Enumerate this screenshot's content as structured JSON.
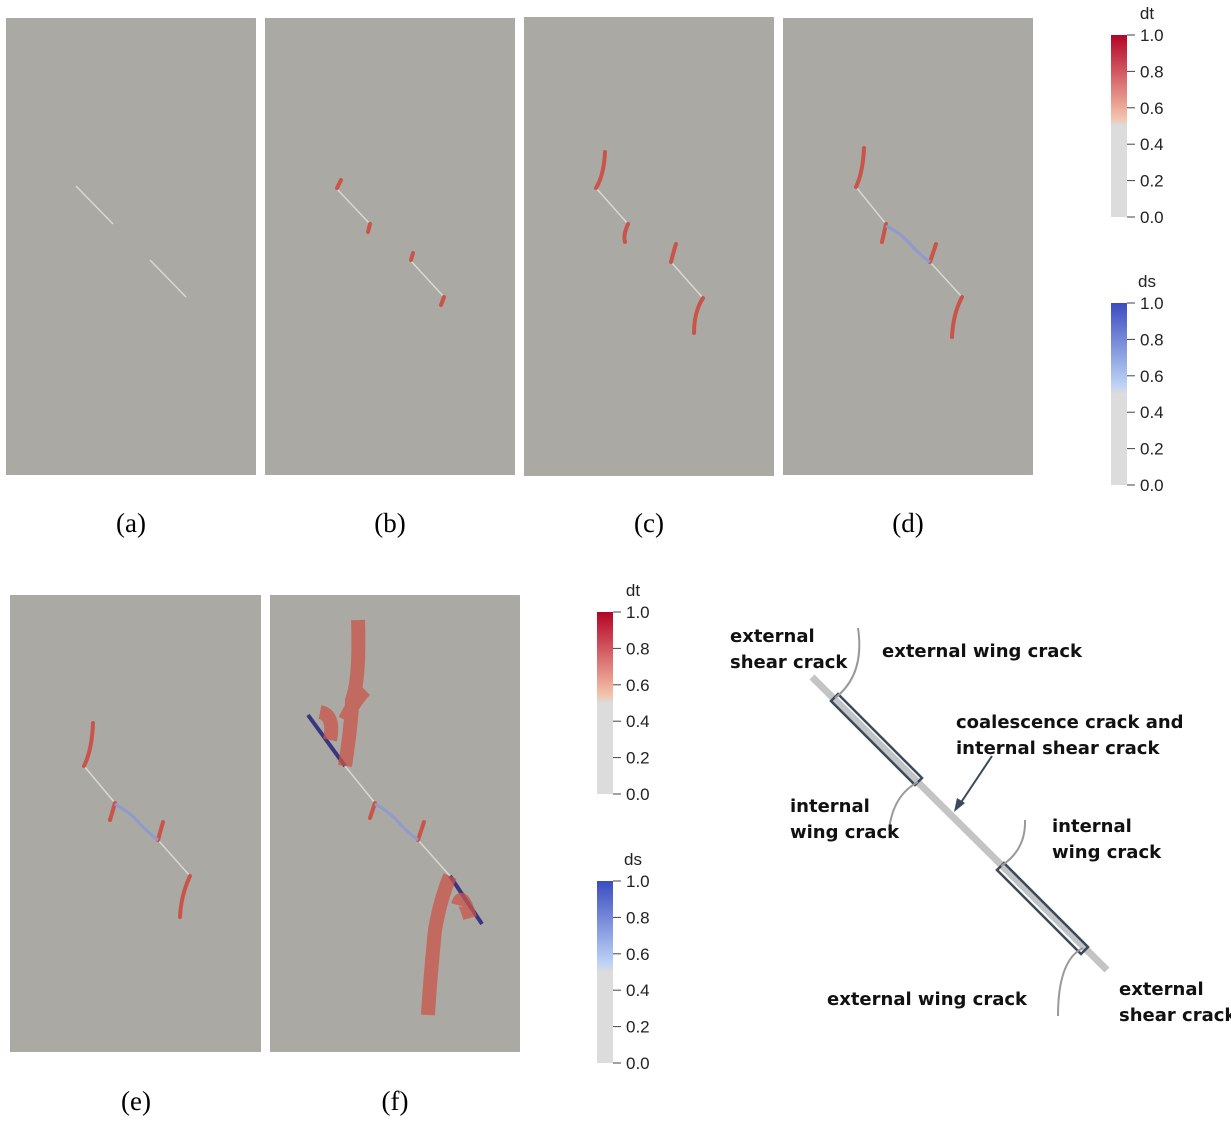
{
  "panel_labels": [
    "(a)",
    "(b)",
    "(c)",
    "(d)",
    "(e)",
    "(f)"
  ],
  "colorbars": [
    {
      "title": "dt",
      "ticks": [
        {
          "value": 1,
          "label": "1.0"
        },
        {
          "value": 0.8,
          "label": "0.8"
        },
        {
          "value": 0.6,
          "label": "0.6"
        },
        {
          "value": 0.4,
          "label": "0.4"
        },
        {
          "value": 0.2,
          "label": "0.2"
        },
        {
          "value": 0,
          "label": "0.0"
        }
      ]
    },
    {
      "title": "ds",
      "ticks": [
        {
          "value": 1,
          "label": "1.0"
        },
        {
          "value": 0.8,
          "label": "0.8"
        },
        {
          "value": 0.6,
          "label": "0.6"
        },
        {
          "value": 0.4,
          "label": "0.4"
        },
        {
          "value": 0.2,
          "label": "0.2"
        },
        {
          "value": 0,
          "label": "0.0"
        }
      ]
    },
    {
      "title": "dt",
      "ticks": [
        {
          "value": 1,
          "label": "1.0"
        },
        {
          "value": 0.8,
          "label": "0.8"
        },
        {
          "value": 0.6,
          "label": "0.6"
        },
        {
          "value": 0.4,
          "label": "0.4"
        },
        {
          "value": 0.2,
          "label": "0.2"
        },
        {
          "value": 0,
          "label": "0.0"
        }
      ]
    },
    {
      "title": "ds",
      "ticks": [
        {
          "value": 1,
          "label": "1.0"
        },
        {
          "value": 0.8,
          "label": "0.8"
        },
        {
          "value": 0.6,
          "label": "0.6"
        },
        {
          "value": 0.4,
          "label": "0.4"
        },
        {
          "value": 0.2,
          "label": "0.2"
        },
        {
          "value": 0,
          "label": "0.0"
        }
      ]
    }
  ],
  "diagram": {
    "labels": [
      [
        "external",
        "shear crack"
      ],
      [
        "external wing crack"
      ],
      [
        "coalescence  crack and",
        "internal shear crack"
      ],
      [
        "internal",
        "wing crack"
      ],
      [
        "internal",
        "wing crack"
      ],
      [
        "external wing crack"
      ],
      [
        "external",
        "shear crack"
      ]
    ]
  }
}
